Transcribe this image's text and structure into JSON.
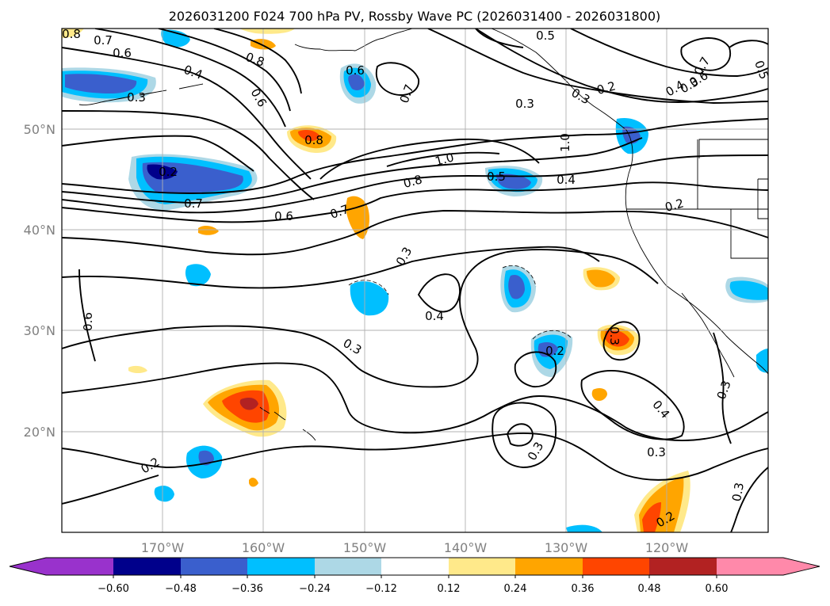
{
  "figure": {
    "title": "2026031200 F024 700 hPa PV, Rossby Wave PC (2026031400 - 2026031800)"
  },
  "axes": {
    "lat_labels": [
      "50°N",
      "40°N",
      "30°N",
      "20°N"
    ],
    "lon_labels": [
      "170°W",
      "160°W",
      "150°W",
      "140°W",
      "130°W",
      "120°W"
    ]
  },
  "colorbar": {
    "ticks": [
      "−0.60",
      "−0.48",
      "−0.36",
      "−0.24",
      "−0.12",
      "0.12",
      "0.24",
      "0.36",
      "0.48",
      "0.60"
    ],
    "colors": [
      "#9932cc",
      "#00008b",
      "#3a5fcd",
      "#00bfff",
      "#add8e6",
      "#ffffff",
      "#ffe98a",
      "#ffa500",
      "#ff4500",
      "#b22222",
      "#ff89aa"
    ]
  },
  "contour_labels": [
    "0.8",
    "0.7",
    "0.6",
    "0.4",
    "0.3",
    "0.8",
    "0.6",
    "0.6",
    "0.7",
    "0.3",
    "0.8",
    "0.2",
    "0.7",
    "0.6",
    "0.7",
    "1.0",
    "0.8",
    "0.5",
    "0.4",
    "1.0",
    "0.5",
    "0.2",
    "0.3",
    "0.7",
    "0.4",
    "0.3",
    "0.6",
    "0.5",
    "0.2",
    "0.3",
    "0.4",
    "0.2",
    "0.6",
    "0.3",
    "0.3",
    "0.2",
    "0.3",
    "0.3",
    "0.4",
    "0.3",
    "0.2",
    "0.3"
  ],
  "palette": {
    "contour": "#000000",
    "grid": "#b0b0b0",
    "land_outline": "#000000"
  }
}
